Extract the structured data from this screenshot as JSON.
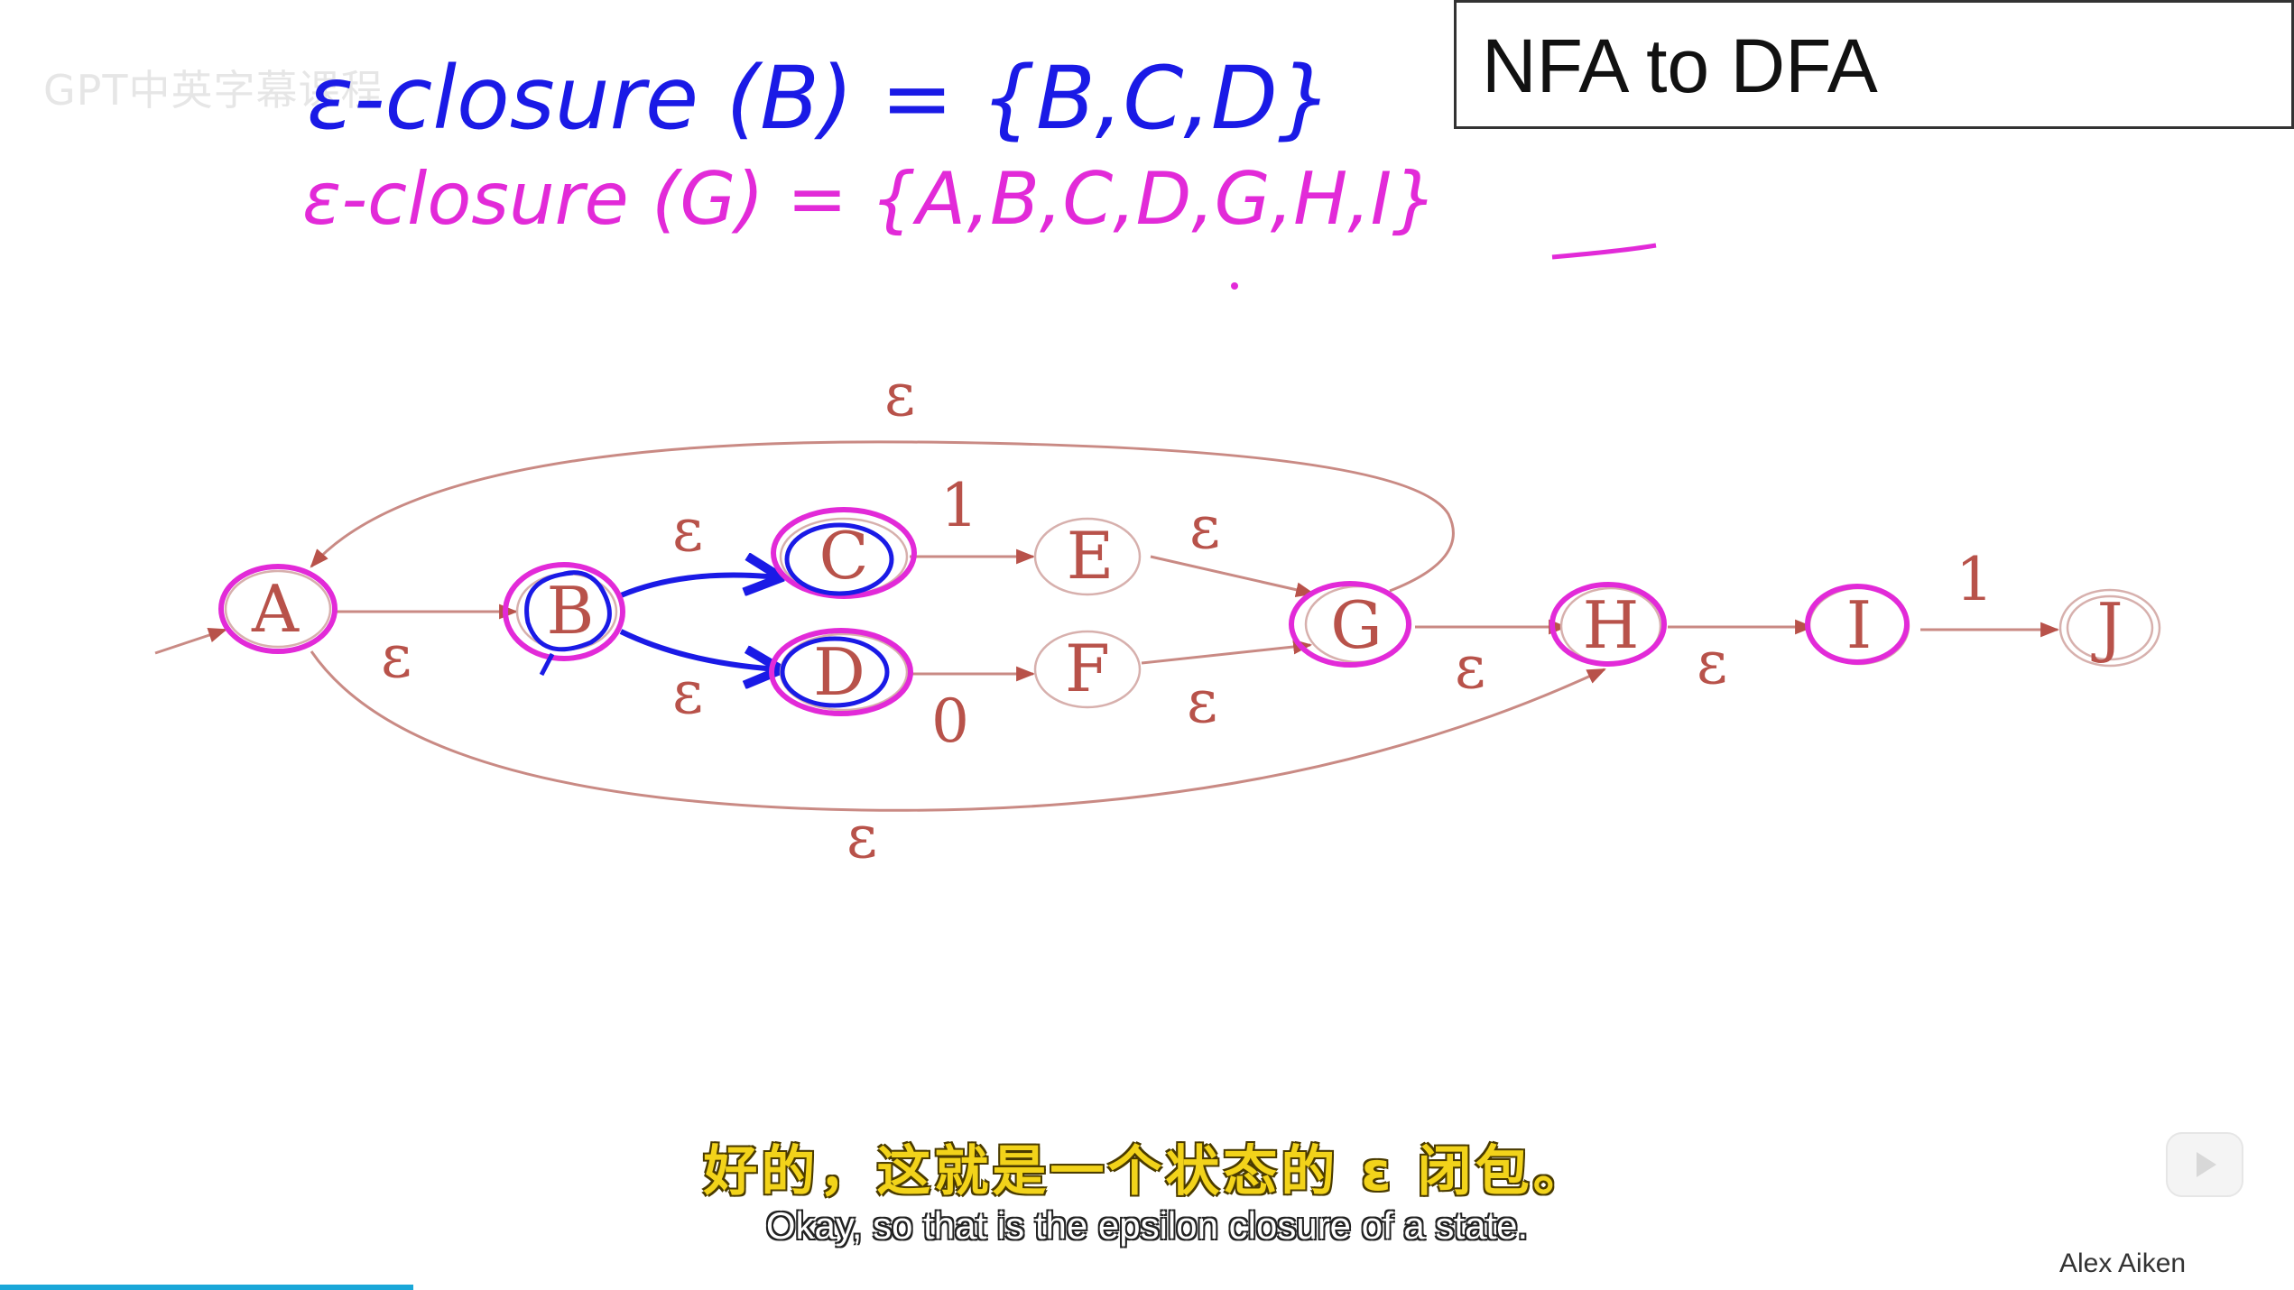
{
  "title": "NFA to DFA",
  "watermark": "GPT中英字幕课程",
  "notes": {
    "line1": "ε-closure (B) = {B,C,D}",
    "line2": "ε-closure (G) = {A,B,C,D,G,H,I}",
    "line1_color": "#1a1ae6",
    "line2_color": "#e22ad8"
  },
  "states": [
    {
      "id": "A",
      "label": "A",
      "highlight": "magenta"
    },
    {
      "id": "B",
      "label": "B",
      "highlight": "both"
    },
    {
      "id": "C",
      "label": "C",
      "highlight": "both"
    },
    {
      "id": "D",
      "label": "D",
      "highlight": "both"
    },
    {
      "id": "E",
      "label": "E",
      "highlight": "none"
    },
    {
      "id": "F",
      "label": "F",
      "highlight": "none"
    },
    {
      "id": "G",
      "label": "G",
      "highlight": "magenta"
    },
    {
      "id": "H",
      "label": "H",
      "highlight": "magenta"
    },
    {
      "id": "I",
      "label": "I",
      "highlight": "magenta"
    },
    {
      "id": "J",
      "label": "J",
      "highlight": "none",
      "accepting": true
    }
  ],
  "edges": [
    {
      "from": "A",
      "to": "B",
      "label": "ε"
    },
    {
      "from": "B",
      "to": "C",
      "label": "ε"
    },
    {
      "from": "B",
      "to": "D",
      "label": "ε"
    },
    {
      "from": "C",
      "to": "E",
      "label": "1"
    },
    {
      "from": "D",
      "to": "F",
      "label": "0"
    },
    {
      "from": "E",
      "to": "G",
      "label": "ε"
    },
    {
      "from": "F",
      "to": "G",
      "label": "ε"
    },
    {
      "from": "G",
      "to": "H",
      "label": "ε"
    },
    {
      "from": "H",
      "to": "I",
      "label": "ε"
    },
    {
      "from": "I",
      "to": "J",
      "label": "1"
    },
    {
      "from": "G",
      "to": "A",
      "label": "ε"
    },
    {
      "from": "A",
      "to": "H",
      "label": "ε"
    }
  ],
  "subtitles": {
    "chinese": "好的，这就是一个状态的 ε 闭包。",
    "english": "Okay, so that is the epsilon closure of a state."
  },
  "author": "Alex Aiken",
  "colors": {
    "diagram": "#b8524a",
    "edge": "#c98a84",
    "blue_ink": "#1a1ae6",
    "magenta_ink": "#e22ad8",
    "subtitle_yellow": "#f2d31a",
    "progress": "#1aa7d8"
  },
  "player": {
    "progress": 0.18
  }
}
